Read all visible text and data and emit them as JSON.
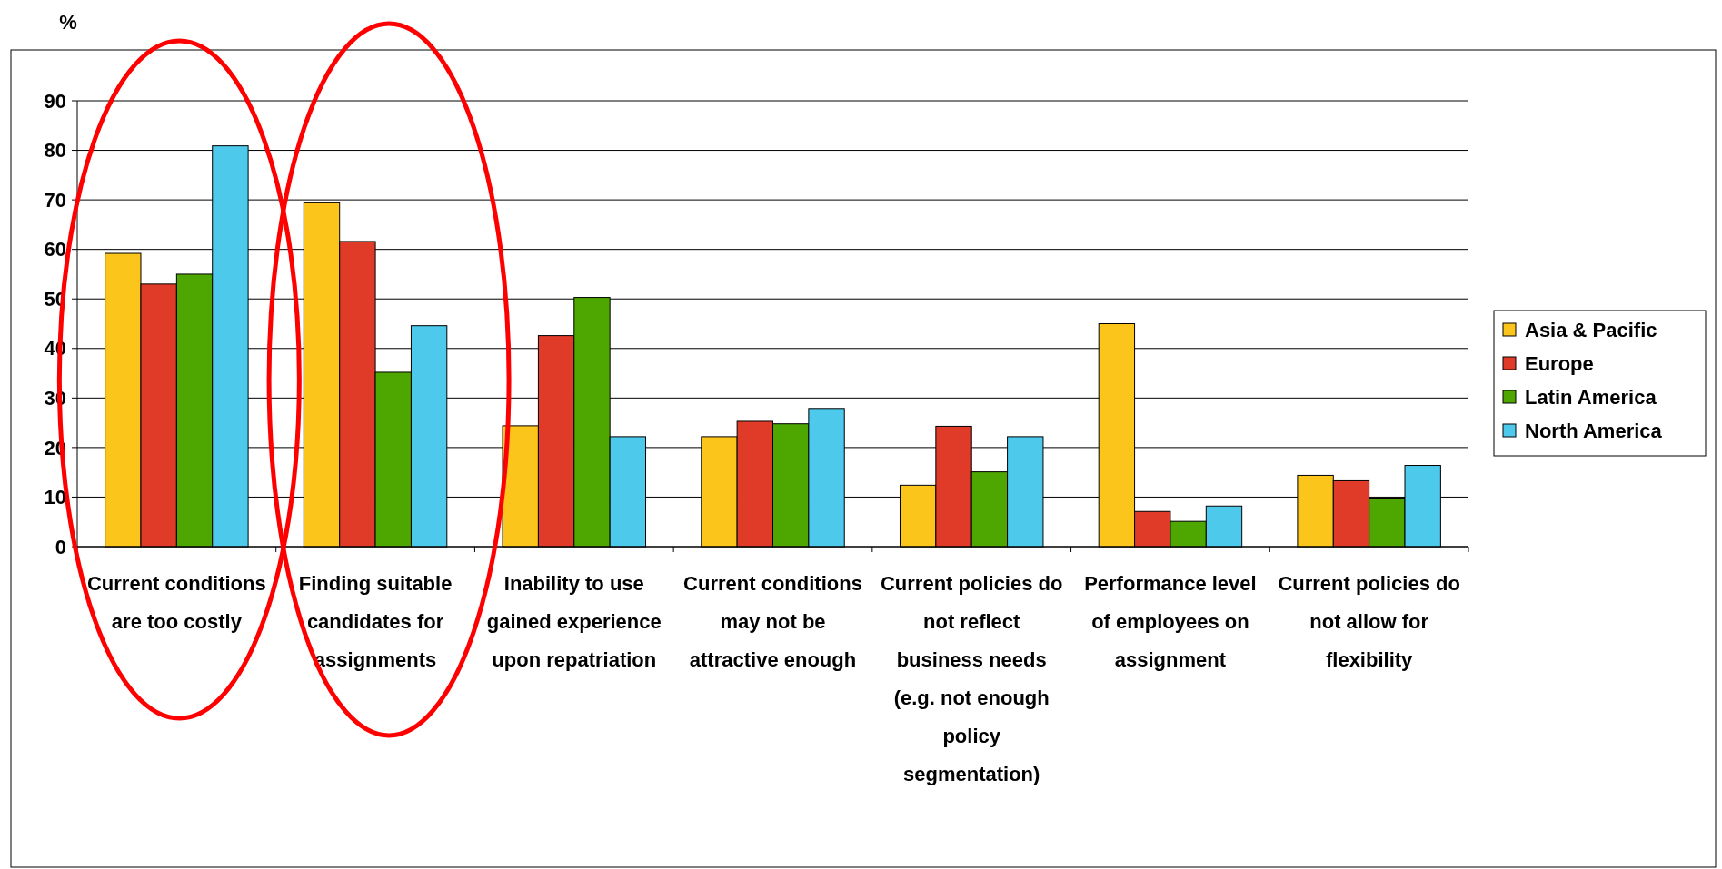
{
  "chart_data": {
    "type": "bar",
    "ylabel": "%",
    "categories": [
      "Current conditions are too costly",
      "Finding suitable candidates for assignments",
      "Inability to use gained experience upon repatriation",
      "Current conditions may not be attractive enough",
      "Current policies do not reflect business needs (e.g. not enough policy segmentation)",
      "Performance level of employees on assignment",
      "Current policies do not allow for flexibility"
    ],
    "series": [
      {
        "name": "Asia & Pacific",
        "color": "#fcc51c",
        "values": [
          59.2,
          69.4,
          24.4,
          22.2,
          12.4,
          45,
          14.4
        ]
      },
      {
        "name": "Europe",
        "color": "#e03a28",
        "values": [
          53,
          61.6,
          42.6,
          25.3,
          24.3,
          7.1,
          13.3
        ]
      },
      {
        "name": "Latin America",
        "color": "#4ea600",
        "values": [
          55,
          35.2,
          50.3,
          24.8,
          15.1,
          5.1,
          9.8
        ]
      },
      {
        "name": "North America",
        "color": "#4dc9ec",
        "values": [
          80.9,
          44.6,
          22.2,
          27.9,
          22.2,
          8.2,
          16.4
        ]
      }
    ],
    "ylim": [
      0,
      90
    ],
    "yticks": [
      0,
      10,
      20,
      30,
      40,
      50,
      60,
      70,
      80,
      90
    ],
    "grid": "y",
    "legend": "right"
  }
}
